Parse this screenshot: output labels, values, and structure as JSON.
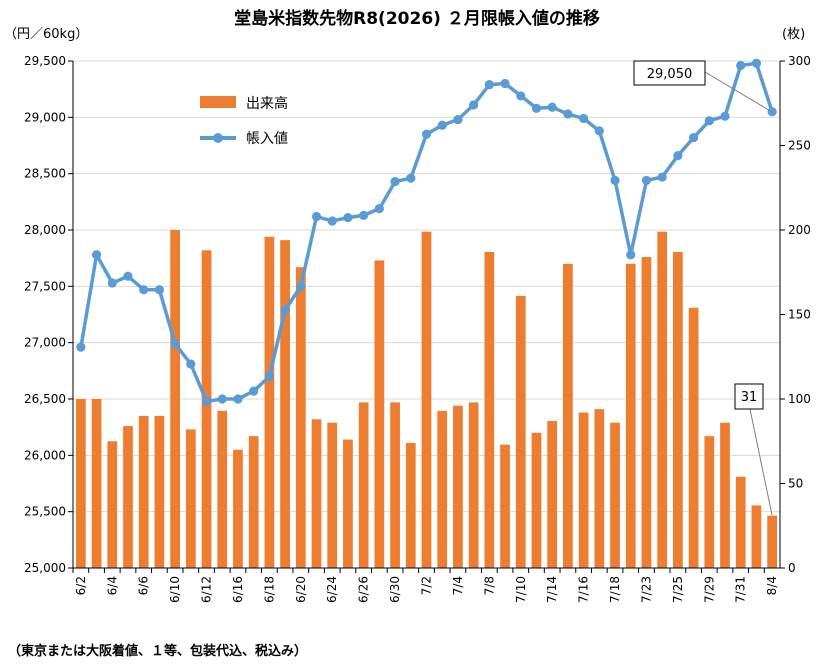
{
  "colors": {
    "bar": "#ED7D31",
    "line": "#5B9BD5",
    "axis": "#000000",
    "grid": "#D9D9D9"
  },
  "chart_data": {
    "type": "bar+line",
    "title": "堂島米指数先物R8(2026) ２月限帳入値の推移",
    "left_unit": "（円／60kg）",
    "right_unit": "(枚)",
    "footnote": "（東京または大阪着値、１等、包装代込、税込み）",
    "categories": [
      "6/2",
      "6/3",
      "6/4",
      "6/5",
      "6/6",
      "6/9",
      "6/10",
      "6/11",
      "6/12",
      "6/13",
      "6/16",
      "6/17",
      "6/18",
      "6/19",
      "6/20",
      "6/23",
      "6/24",
      "6/25",
      "6/26",
      "6/27",
      "6/30",
      "7/1",
      "7/2",
      "7/3",
      "7/4",
      "7/7",
      "7/8",
      "7/9",
      "7/10",
      "7/11",
      "7/14",
      "7/15",
      "7/16",
      "7/17",
      "7/18",
      "7/22",
      "7/23",
      "7/24",
      "7/25",
      "7/28",
      "7/29",
      "7/30",
      "7/31",
      "8/1",
      "8/4"
    ],
    "x_tick_labels": [
      "6/2",
      "6/4",
      "6/6",
      "6/10",
      "6/12",
      "6/16",
      "6/18",
      "6/20",
      "6/24",
      "6/26",
      "6/30",
      "7/2",
      "7/4",
      "7/8",
      "7/10",
      "7/14",
      "7/16",
      "7/18",
      "7/23",
      "7/25",
      "7/29",
      "7/31",
      "8/4"
    ],
    "left_axis": {
      "min": 25000,
      "max": 29500,
      "step": 500,
      "tick_labels": [
        "25,000",
        "25,500",
        "26,000",
        "26,500",
        "27,000",
        "27,500",
        "28,000",
        "28,500",
        "29,000",
        "29,500"
      ]
    },
    "right_axis": {
      "min": 0,
      "max": 300,
      "step": 50,
      "tick_labels": [
        "0",
        "50",
        "100",
        "150",
        "200",
        "250",
        "300"
      ]
    },
    "series": [
      {
        "name": "出来高",
        "type": "bar",
        "axis": "right",
        "values": [
          100,
          100,
          75,
          84,
          90,
          90,
          200,
          82,
          188,
          93,
          70,
          78,
          196,
          194,
          178,
          88,
          86,
          76,
          98,
          182,
          98,
          74,
          199,
          93,
          96,
          98,
          187,
          73,
          161,
          80,
          87,
          180,
          92,
          94,
          86,
          180,
          184,
          199,
          187,
          154,
          78,
          86,
          54,
          37,
          31
        ]
      },
      {
        "name": "帳入値",
        "type": "line",
        "axis": "left",
        "values": [
          26960,
          27780,
          27530,
          27590,
          27470,
          27470,
          26990,
          26810,
          26480,
          26500,
          26500,
          26570,
          26700,
          27290,
          27500,
          28120,
          28080,
          28110,
          28130,
          28190,
          28430,
          28460,
          28850,
          28930,
          28980,
          29110,
          29290,
          29300,
          29190,
          29080,
          29090,
          29030,
          28990,
          28880,
          28440,
          27780,
          28440,
          28470,
          28660,
          28820,
          28970,
          29010,
          29460,
          29480,
          29050
        ]
      }
    ],
    "legend_position": "top-left-inside",
    "annotations": [
      {
        "text": "29,050",
        "points_to": "帳入値 8/4"
      },
      {
        "text": "31",
        "points_to": "出来高 8/4"
      }
    ]
  }
}
